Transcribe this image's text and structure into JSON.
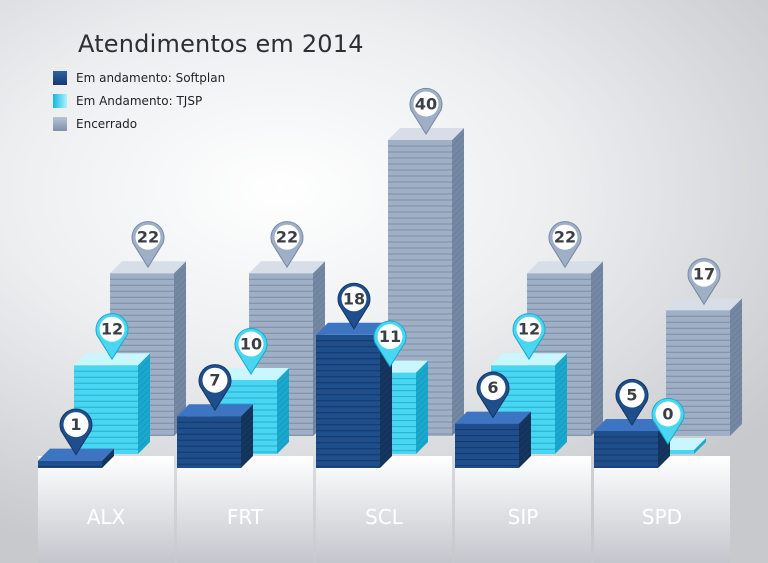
{
  "chart_data": {
    "type": "bar",
    "title": "Atendimentos em 2014",
    "categories": [
      "ALX",
      "FRT",
      "SCL",
      "SIP",
      "SPD"
    ],
    "series": [
      {
        "name": "Em andamento: Softplan",
        "values": [
          1,
          7,
          18,
          6,
          5
        ],
        "color": "#1f4e8c"
      },
      {
        "name": "Em Andamento: TJSP",
        "values": [
          12,
          10,
          11,
          12,
          0
        ],
        "color": "#2fd0ee"
      },
      {
        "name": "Encerrado",
        "values": [
          22,
          22,
          40,
          22,
          17
        ],
        "color": "#8fa1ba"
      }
    ],
    "legend_position": "top-left"
  }
}
